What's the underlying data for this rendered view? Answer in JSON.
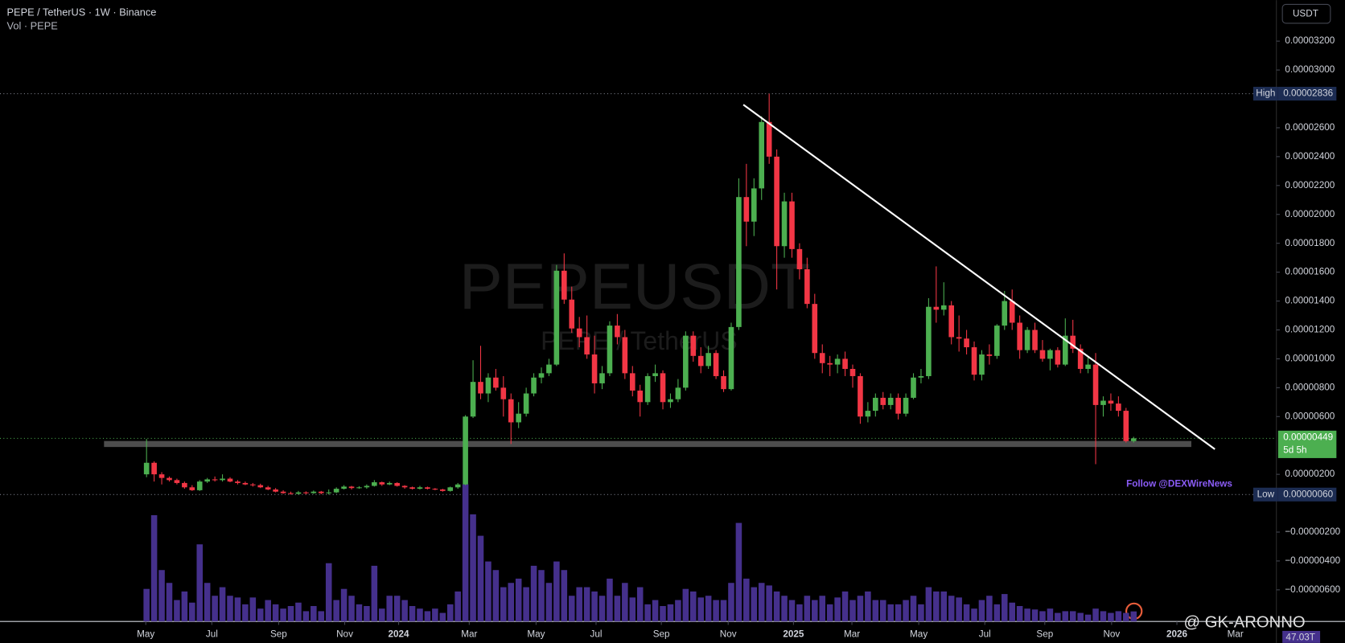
{
  "chart_data": {
    "type": "candlestick",
    "title": "PEPE / TetherUS · 1W · Binance",
    "subtitle": "Vol · PEPE",
    "watermark": "PEPEUSDT",
    "watermark_subtitle": "PEPE / TetherUS",
    "currency": "USDT",
    "annotation": "Follow @DEXWireNews",
    "signature": "@ GK-ARONNO",
    "volume_label": "47.03T",
    "up_color": "#4caf50",
    "down_color": "#f23645",
    "volume_color": "#45308c",
    "xlim": [
      -19.3,
      148.8
    ],
    "ylim": [
      -8.19e-06,
      3.484e-05
    ],
    "xticks": [
      {
        "value": -0.1,
        "label": "May"
      },
      {
        "value": 8.6,
        "label": "Jul"
      },
      {
        "value": 17.4,
        "label": "Sep"
      },
      {
        "value": 26.1,
        "label": "Nov"
      },
      {
        "value": 33.2,
        "label": "2024"
      },
      {
        "value": 42.5,
        "label": "Mar"
      },
      {
        "value": 51.3,
        "label": "May"
      },
      {
        "value": 59.2,
        "label": "Jul"
      },
      {
        "value": 67.8,
        "label": "Sep"
      },
      {
        "value": 76.6,
        "label": "Nov"
      },
      {
        "value": 85.2,
        "label": "2025"
      },
      {
        "value": 92.9,
        "label": "Mar"
      },
      {
        "value": 101.7,
        "label": "May"
      },
      {
        "value": 110.4,
        "label": "Jul"
      },
      {
        "value": 118.3,
        "label": "Sep"
      },
      {
        "value": 127.1,
        "label": "Nov"
      },
      {
        "value": 135.7,
        "label": "2026"
      },
      {
        "value": 143.4,
        "label": "Mar"
      }
    ],
    "yticks": [
      {
        "value": 3.2e-05,
        "label": "0.00003200"
      },
      {
        "value": 3e-05,
        "label": "0.00003000"
      },
      {
        "value": 2.6e-05,
        "label": "0.00002600"
      },
      {
        "value": 2.4e-05,
        "label": "0.00002400"
      },
      {
        "value": 2.2e-05,
        "label": "0.00002200"
      },
      {
        "value": 2e-05,
        "label": "0.00002000"
      },
      {
        "value": 1.8e-05,
        "label": "0.00001800"
      },
      {
        "value": 1.6e-05,
        "label": "0.00001600"
      },
      {
        "value": 1.4e-05,
        "label": "0.00001400"
      },
      {
        "value": 1.2e-05,
        "label": "0.00001200"
      },
      {
        "value": 1e-05,
        "label": "0.00001000"
      },
      {
        "value": 8e-06,
        "label": "0.00000800"
      },
      {
        "value": 6e-06,
        "label": "0.00000600"
      },
      {
        "value": 2e-06,
        "label": "0.00000200"
      },
      {
        "value": -2e-06,
        "label": "−0.00000200"
      },
      {
        "value": -4e-06,
        "label": "−0.00000400"
      },
      {
        "value": -6e-06,
        "label": "−0.00000600"
      }
    ],
    "high": {
      "name": "High",
      "value": 2.836e-05,
      "label": "0.00002836"
    },
    "low": {
      "name": "Low",
      "value": 6e-07,
      "label": "0.00000060"
    },
    "last": {
      "value": 4.49e-06,
      "label": "0.00000449",
      "countdown": "5d 5h"
    },
    "trendline": {
      "x": [
        78.6,
        140.7
      ],
      "y": [
        2.76e-05,
        3.74e-06
      ]
    },
    "support": {
      "x": [
        -5.6,
        137.6
      ],
      "y": 4.1e-06
    },
    "candles": [
      {
        "o": 2e-06,
        "h": 4.45e-06,
        "l": 1.8e-06,
        "c": 2.8e-06,
        "v": 152
      },
      {
        "o": 2.8e-06,
        "h": 2.9e-06,
        "l": 1.5e-06,
        "c": 2e-06,
        "v": 496
      },
      {
        "o": 2e-06,
        "h": 2.15e-06,
        "l": 1.3e-06,
        "c": 1.75e-06,
        "v": 240
      },
      {
        "o": 1.75e-06,
        "h": 1.85e-06,
        "l": 1.5e-06,
        "c": 1.6e-06,
        "v": 180
      },
      {
        "o": 1.6e-06,
        "h": 1.7e-06,
        "l": 1.3e-06,
        "c": 1.4e-06,
        "v": 100
      },
      {
        "o": 1.4e-06,
        "h": 1.5e-06,
        "l": 1e-06,
        "c": 1.1e-06,
        "v": 140
      },
      {
        "o": 1.1e-06,
        "h": 1.25e-06,
        "l": 8.5e-07,
        "c": 9e-07,
        "v": 88
      },
      {
        "o": 9e-07,
        "h": 1.6e-06,
        "l": 8.5e-07,
        "c": 1.5e-06,
        "v": 360
      },
      {
        "o": 1.5e-06,
        "h": 1.75e-06,
        "l": 1.4e-06,
        "c": 1.65e-06,
        "v": 180
      },
      {
        "o": 1.65e-06,
        "h": 1.85e-06,
        "l": 1.5e-06,
        "c": 1.6e-06,
        "v": 120
      },
      {
        "o": 1.6e-06,
        "h": 2e-06,
        "l": 1.5e-06,
        "c": 1.7e-06,
        "v": 160
      },
      {
        "o": 1.7e-06,
        "h": 1.8e-06,
        "l": 1.45e-06,
        "c": 1.5e-06,
        "v": 120
      },
      {
        "o": 1.5e-06,
        "h": 1.6e-06,
        "l": 1.3e-06,
        "c": 1.4e-06,
        "v": 112
      },
      {
        "o": 1.4e-06,
        "h": 1.5e-06,
        "l": 1.25e-06,
        "c": 1.3e-06,
        "v": 80
      },
      {
        "o": 1.3e-06,
        "h": 1.4e-06,
        "l": 1.15e-06,
        "c": 1.25e-06,
        "v": 112
      },
      {
        "o": 1.25e-06,
        "h": 1.35e-06,
        "l": 1.05e-06,
        "c": 1.1e-06,
        "v": 60
      },
      {
        "o": 1.1e-06,
        "h": 1.2e-06,
        "l": 9e-07,
        "c": 9.5e-07,
        "v": 100
      },
      {
        "o": 9.5e-07,
        "h": 1.05e-06,
        "l": 7.5e-07,
        "c": 8e-07,
        "v": 80
      },
      {
        "o": 8e-07,
        "h": 9e-07,
        "l": 6.5e-07,
        "c": 7e-07,
        "v": 60
      },
      {
        "o": 7e-07,
        "h": 8e-07,
        "l": 6e-07,
        "c": 6.5e-07,
        "v": 72
      },
      {
        "o": 6.5e-07,
        "h": 8.5e-07,
        "l": 6e-07,
        "c": 7.5e-07,
        "v": 88
      },
      {
        "o": 7.5e-07,
        "h": 8.2e-07,
        "l": 6.2e-07,
        "c": 7e-07,
        "v": 48
      },
      {
        "o": 7e-07,
        "h": 8.8e-07,
        "l": 6.5e-07,
        "c": 8e-07,
        "v": 72
      },
      {
        "o": 8e-07,
        "h": 8.5e-07,
        "l": 6.2e-07,
        "c": 7e-07,
        "v": 48
      },
      {
        "o": 7e-07,
        "h": 9.5e-07,
        "l": 6e-07,
        "c": 7.5e-07,
        "v": 272
      },
      {
        "o": 7.5e-07,
        "h": 1.1e-06,
        "l": 7e-07,
        "c": 1e-06,
        "v": 100
      },
      {
        "o": 1e-06,
        "h": 1.25e-06,
        "l": 9.5e-07,
        "c": 1.15e-06,
        "v": 152
      },
      {
        "o": 1.15e-06,
        "h": 1.2e-06,
        "l": 9.5e-07,
        "c": 1.05e-06,
        "v": 120
      },
      {
        "o": 1.05e-06,
        "h": 1.18e-06,
        "l": 1e-06,
        "c": 1.1e-06,
        "v": 80
      },
      {
        "o": 1.1e-06,
        "h": 1.3e-06,
        "l": 1e-06,
        "c": 1.2e-06,
        "v": 72
      },
      {
        "o": 1.2e-06,
        "h": 1.6e-06,
        "l": 1.15e-06,
        "c": 1.45e-06,
        "v": 260
      },
      {
        "o": 1.45e-06,
        "h": 1.5e-06,
        "l": 1.2e-06,
        "c": 1.3e-06,
        "v": 60
      },
      {
        "o": 1.3e-06,
        "h": 1.5e-06,
        "l": 1.25e-06,
        "c": 1.4e-06,
        "v": 120
      },
      {
        "o": 1.4e-06,
        "h": 1.45e-06,
        "l": 1.15e-06,
        "c": 1.2e-06,
        "v": 120
      },
      {
        "o": 1.2e-06,
        "h": 1.25e-06,
        "l": 1e-06,
        "c": 1.1e-06,
        "v": 100
      },
      {
        "o": 1.1e-06,
        "h": 1.15e-06,
        "l": 9.5e-07,
        "c": 1e-06,
        "v": 72
      },
      {
        "o": 1e-06,
        "h": 1.2e-06,
        "l": 9.5e-07,
        "c": 1.1e-06,
        "v": 60
      },
      {
        "o": 1.1e-06,
        "h": 1.15e-06,
        "l": 9.5e-07,
        "c": 1e-06,
        "v": 48
      },
      {
        "o": 1e-06,
        "h": 1.05e-06,
        "l": 9e-07,
        "c": 9.5e-07,
        "v": 60
      },
      {
        "o": 9.5e-07,
        "h": 1e-06,
        "l": 8e-07,
        "c": 8.5e-07,
        "v": 40
      },
      {
        "o": 8.5e-07,
        "h": 1.15e-06,
        "l": 8e-07,
        "c": 1.1e-06,
        "v": 80
      },
      {
        "o": 1.1e-06,
        "h": 1.4e-06,
        "l": 1e-06,
        "c": 1.3e-06,
        "v": 140
      },
      {
        "o": 1.3e-06,
        "h": 6.1e-06,
        "l": 1.25e-06,
        "c": 6e-06,
        "v": 640
      },
      {
        "o": 6e-06,
        "h": 9.9e-06,
        "l": 5.9e-06,
        "c": 8.4e-06,
        "v": 500
      },
      {
        "o": 8.4e-06,
        "h": 1.09e-05,
        "l": 7.2e-06,
        "c": 7.6e-06,
        "v": 400
      },
      {
        "o": 7.6e-06,
        "h": 9e-06,
        "l": 7e-06,
        "c": 8.7e-06,
        "v": 280
      },
      {
        "o": 8.7e-06,
        "h": 9.3e-06,
        "l": 7.8e-06,
        "c": 8e-06,
        "v": 240
      },
      {
        "o": 8e-06,
        "h": 8.8e-06,
        "l": 6e-06,
        "c": 7.2e-06,
        "v": 160
      },
      {
        "o": 7.2e-06,
        "h": 7.6e-06,
        "l": 4.1e-06,
        "c": 5.6e-06,
        "v": 180
      },
      {
        "o": 5.6e-06,
        "h": 7e-06,
        "l": 5.2e-06,
        "c": 6.2e-06,
        "v": 200
      },
      {
        "o": 6.2e-06,
        "h": 8e-06,
        "l": 6e-06,
        "c": 7.6e-06,
        "v": 160
      },
      {
        "o": 7.6e-06,
        "h": 9e-06,
        "l": 7.4e-06,
        "c": 8.7e-06,
        "v": 260
      },
      {
        "o": 8.7e-06,
        "h": 9.4e-06,
        "l": 8.3e-06,
        "c": 9e-06,
        "v": 240
      },
      {
        "o": 9e-06,
        "h": 1e-05,
        "l": 8.8e-06,
        "c": 9.6e-06,
        "v": 180
      },
      {
        "o": 9.6e-06,
        "h": 1.65e-05,
        "l": 9.5e-06,
        "c": 1.61e-05,
        "v": 280
      },
      {
        "o": 1.61e-05,
        "h": 1.73e-05,
        "l": 1.38e-05,
        "c": 1.41e-05,
        "v": 240
      },
      {
        "o": 1.41e-05,
        "h": 1.5e-05,
        "l": 1.18e-05,
        "c": 1.21e-05,
        "v": 120
      },
      {
        "o": 1.21e-05,
        "h": 1.29e-05,
        "l": 1.08e-05,
        "c": 1.15e-05,
        "v": 160
      },
      {
        "o": 1.15e-05,
        "h": 1.3e-05,
        "l": 1e-05,
        "c": 1.03e-05,
        "v": 160
      },
      {
        "o": 1.03e-05,
        "h": 1.16e-05,
        "l": 7.6e-06,
        "c": 8.3e-06,
        "v": 140
      },
      {
        "o": 8.3e-06,
        "h": 9.5e-06,
        "l": 7.9e-06,
        "c": 9e-06,
        "v": 120
      },
      {
        "o": 9e-06,
        "h": 1.26e-05,
        "l": 8.8e-06,
        "c": 1.23e-05,
        "v": 200
      },
      {
        "o": 1.23e-05,
        "h": 1.31e-05,
        "l": 1.1e-05,
        "c": 1.15e-05,
        "v": 120
      },
      {
        "o": 1.15e-05,
        "h": 1.2e-05,
        "l": 8.6e-06,
        "c": 9e-06,
        "v": 180
      },
      {
        "o": 9e-06,
        "h": 9.5e-06,
        "l": 7.4e-06,
        "c": 7.8e-06,
        "v": 112
      },
      {
        "o": 7.8e-06,
        "h": 8.2e-06,
        "l": 6e-06,
        "c": 7e-06,
        "v": 160
      },
      {
        "o": 7e-06,
        "h": 9e-06,
        "l": 6.8e-06,
        "c": 8.8e-06,
        "v": 80
      },
      {
        "o": 8.8e-06,
        "h": 9.6e-06,
        "l": 8.4e-06,
        "c": 9e-06,
        "v": 100
      },
      {
        "o": 9e-06,
        "h": 9.2e-06,
        "l": 6.5e-06,
        "c": 7e-06,
        "v": 72
      },
      {
        "o": 7e-06,
        "h": 7.6e-06,
        "l": 6.6e-06,
        "c": 7.2e-06,
        "v": 80
      },
      {
        "o": 7.2e-06,
        "h": 8.6e-06,
        "l": 7e-06,
        "c": 8e-06,
        "v": 100
      },
      {
        "o": 8e-06,
        "h": 1.19e-05,
        "l": 7.8e-06,
        "c": 1.16e-05,
        "v": 152
      },
      {
        "o": 1.16e-05,
        "h": 1.19e-05,
        "l": 9.8e-06,
        "c": 1.02e-05,
        "v": 140
      },
      {
        "o": 1.02e-05,
        "h": 1.08e-05,
        "l": 9e-06,
        "c": 9.5e-06,
        "v": 112
      },
      {
        "o": 9.5e-06,
        "h": 1.09e-05,
        "l": 9.3e-06,
        "c": 1.04e-05,
        "v": 120
      },
      {
        "o": 1.04e-05,
        "h": 1.06e-05,
        "l": 8.6e-06,
        "c": 8.8e-06,
        "v": 100
      },
      {
        "o": 8.8e-06,
        "h": 9.2e-06,
        "l": 7.7e-06,
        "c": 7.9e-06,
        "v": 100
      },
      {
        "o": 7.9e-06,
        "h": 1.25e-05,
        "l": 7.8e-06,
        "c": 1.22e-05,
        "v": 180
      },
      {
        "o": 1.22e-05,
        "h": 2.25e-05,
        "l": 1.2e-05,
        "c": 2.12e-05,
        "v": 460
      },
      {
        "o": 2.12e-05,
        "h": 2.35e-05,
        "l": 1.78e-05,
        "c": 1.95e-05,
        "v": 200
      },
      {
        "o": 1.95e-05,
        "h": 2.25e-05,
        "l": 1.85e-05,
        "c": 2.18e-05,
        "v": 160
      },
      {
        "o": 2.18e-05,
        "h": 2.68e-05,
        "l": 2.1e-05,
        "c": 2.64e-05,
        "v": 180
      },
      {
        "o": 2.64e-05,
        "h": 2.836e-05,
        "l": 2.35e-05,
        "c": 2.4e-05,
        "v": 168
      },
      {
        "o": 2.4e-05,
        "h": 2.45e-05,
        "l": 1.48e-05,
        "c": 1.78e-05,
        "v": 140
      },
      {
        "o": 1.78e-05,
        "h": 2.15e-05,
        "l": 1.7e-05,
        "c": 2.09e-05,
        "v": 120
      },
      {
        "o": 2.09e-05,
        "h": 2.15e-05,
        "l": 1.7e-05,
        "c": 1.76e-05,
        "v": 100
      },
      {
        "o": 1.76e-05,
        "h": 1.8e-05,
        "l": 1.55e-05,
        "c": 1.62e-05,
        "v": 80
      },
      {
        "o": 1.62e-05,
        "h": 1.7e-05,
        "l": 1.35e-05,
        "c": 1.38e-05,
        "v": 120
      },
      {
        "o": 1.38e-05,
        "h": 1.45e-05,
        "l": 1e-05,
        "c": 1.04e-05,
        "v": 100
      },
      {
        "o": 1.04e-05,
        "h": 1.1e-05,
        "l": 9e-06,
        "c": 9.7e-06,
        "v": 120
      },
      {
        "o": 9.7e-06,
        "h": 1.02e-05,
        "l": 8.8e-06,
        "c": 9.6e-06,
        "v": 80
      },
      {
        "o": 9.6e-06,
        "h": 1.03e-05,
        "l": 9e-06,
        "c": 1e-05,
        "v": 112
      },
      {
        "o": 1e-05,
        "h": 1.05e-05,
        "l": 8.8e-06,
        "c": 9.3e-06,
        "v": 140
      },
      {
        "o": 9.3e-06,
        "h": 9.6e-06,
        "l": 8e-06,
        "c": 8.8e-06,
        "v": 100
      },
      {
        "o": 8.8e-06,
        "h": 9e-06,
        "l": 5.5e-06,
        "c": 6e-06,
        "v": 120
      },
      {
        "o": 6e-06,
        "h": 7e-06,
        "l": 5.6e-06,
        "c": 6.4e-06,
        "v": 140
      },
      {
        "o": 6.4e-06,
        "h": 7.6e-06,
        "l": 6e-06,
        "c": 7.3e-06,
        "v": 100
      },
      {
        "o": 7.3e-06,
        "h": 7.7e-06,
        "l": 6.5e-06,
        "c": 6.8e-06,
        "v": 100
      },
      {
        "o": 6.8e-06,
        "h": 7.6e-06,
        "l": 6.5e-06,
        "c": 7.3e-06,
        "v": 80
      },
      {
        "o": 7.3e-06,
        "h": 7.6e-06,
        "l": 5.8e-06,
        "c": 6.2e-06,
        "v": 80
      },
      {
        "o": 6.2e-06,
        "h": 7.6e-06,
        "l": 6e-06,
        "c": 7.3e-06,
        "v": 100
      },
      {
        "o": 7.3e-06,
        "h": 9e-06,
        "l": 7.2e-06,
        "c": 8.7e-06,
        "v": 120
      },
      {
        "o": 8.7e-06,
        "h": 9.3e-06,
        "l": 8.3e-06,
        "c": 8.8e-06,
        "v": 80
      },
      {
        "o": 8.8e-06,
        "h": 1.42e-05,
        "l": 8.6e-06,
        "c": 1.36e-05,
        "v": 160
      },
      {
        "o": 1.36e-05,
        "h": 1.64e-05,
        "l": 1.25e-05,
        "c": 1.34e-05,
        "v": 140
      },
      {
        "o": 1.34e-05,
        "h": 1.53e-05,
        "l": 1.3e-05,
        "c": 1.37e-05,
        "v": 140
      },
      {
        "o": 1.37e-05,
        "h": 1.4e-05,
        "l": 1.1e-05,
        "c": 1.15e-05,
        "v": 120
      },
      {
        "o": 1.15e-05,
        "h": 1.3e-05,
        "l": 1.05e-05,
        "c": 1.14e-05,
        "v": 112
      },
      {
        "o": 1.14e-05,
        "h": 1.2e-05,
        "l": 1.03e-05,
        "c": 1.08e-05,
        "v": 80
      },
      {
        "o": 1.08e-05,
        "h": 1.12e-05,
        "l": 8.5e-06,
        "c": 8.9e-06,
        "v": 60
      },
      {
        "o": 8.9e-06,
        "h": 1.06e-05,
        "l": 8.5e-06,
        "c": 1.03e-05,
        "v": 100
      },
      {
        "o": 1.03e-05,
        "h": 1.1e-05,
        "l": 9.6e-06,
        "c": 1.02e-05,
        "v": 120
      },
      {
        "o": 1.02e-05,
        "h": 1.24e-05,
        "l": 1e-05,
        "c": 1.23e-05,
        "v": 80
      },
      {
        "o": 1.23e-05,
        "h": 1.47e-05,
        "l": 1.2e-05,
        "c": 1.4e-05,
        "v": 128
      },
      {
        "o": 1.4e-05,
        "h": 1.48e-05,
        "l": 1.2e-05,
        "c": 1.25e-05,
        "v": 88
      },
      {
        "o": 1.25e-05,
        "h": 1.3e-05,
        "l": 1e-05,
        "c": 1.06e-05,
        "v": 72
      },
      {
        "o": 1.06e-05,
        "h": 1.22e-05,
        "l": 1.04e-05,
        "c": 1.2e-05,
        "v": 60
      },
      {
        "o": 1.2e-05,
        "h": 1.25e-05,
        "l": 1.04e-05,
        "c": 1.06e-05,
        "v": 56
      },
      {
        "o": 1.06e-05,
        "h": 1.13e-05,
        "l": 9.8e-06,
        "c": 1e-05,
        "v": 48
      },
      {
        "o": 1e-05,
        "h": 1.07e-05,
        "l": 9.2e-06,
        "c": 1.06e-05,
        "v": 60
      },
      {
        "o": 1.06e-05,
        "h": 1.08e-05,
        "l": 9.4e-06,
        "c": 9.6e-06,
        "v": 40
      },
      {
        "o": 9.6e-06,
        "h": 1.28e-05,
        "l": 9.5e-06,
        "c": 1.16e-05,
        "v": 48
      },
      {
        "o": 1.16e-05,
        "h": 1.27e-05,
        "l": 1.04e-05,
        "c": 1.07e-05,
        "v": 48
      },
      {
        "o": 1.07e-05,
        "h": 1.1e-05,
        "l": 9e-06,
        "c": 9.3e-06,
        "v": 40
      },
      {
        "o": 9.3e-06,
        "h": 1.01e-05,
        "l": 9e-06,
        "c": 9.6e-06,
        "v": 32
      },
      {
        "o": 9.6e-06,
        "h": 1.04e-05,
        "l": 2.7e-06,
        "c": 6.8e-06,
        "v": 60
      },
      {
        "o": 6.8e-06,
        "h": 7.4e-06,
        "l": 6e-06,
        "c": 7.1e-06,
        "v": 48
      },
      {
        "o": 7.1e-06,
        "h": 7.6e-06,
        "l": 6.4e-06,
        "c": 6.9e-06,
        "v": 40
      },
      {
        "o": 6.9e-06,
        "h": 7.4e-06,
        "l": 6e-06,
        "c": 6.4e-06,
        "v": 48
      },
      {
        "o": 6.4e-06,
        "h": 6.6e-06,
        "l": 4.2e-06,
        "c": 4.3e-06,
        "v": 40
      },
      {
        "o": 4.3e-06,
        "h": 4.6e-06,
        "l": 4.2e-06,
        "c": 4.49e-06,
        "v": 47.03
      }
    ]
  }
}
